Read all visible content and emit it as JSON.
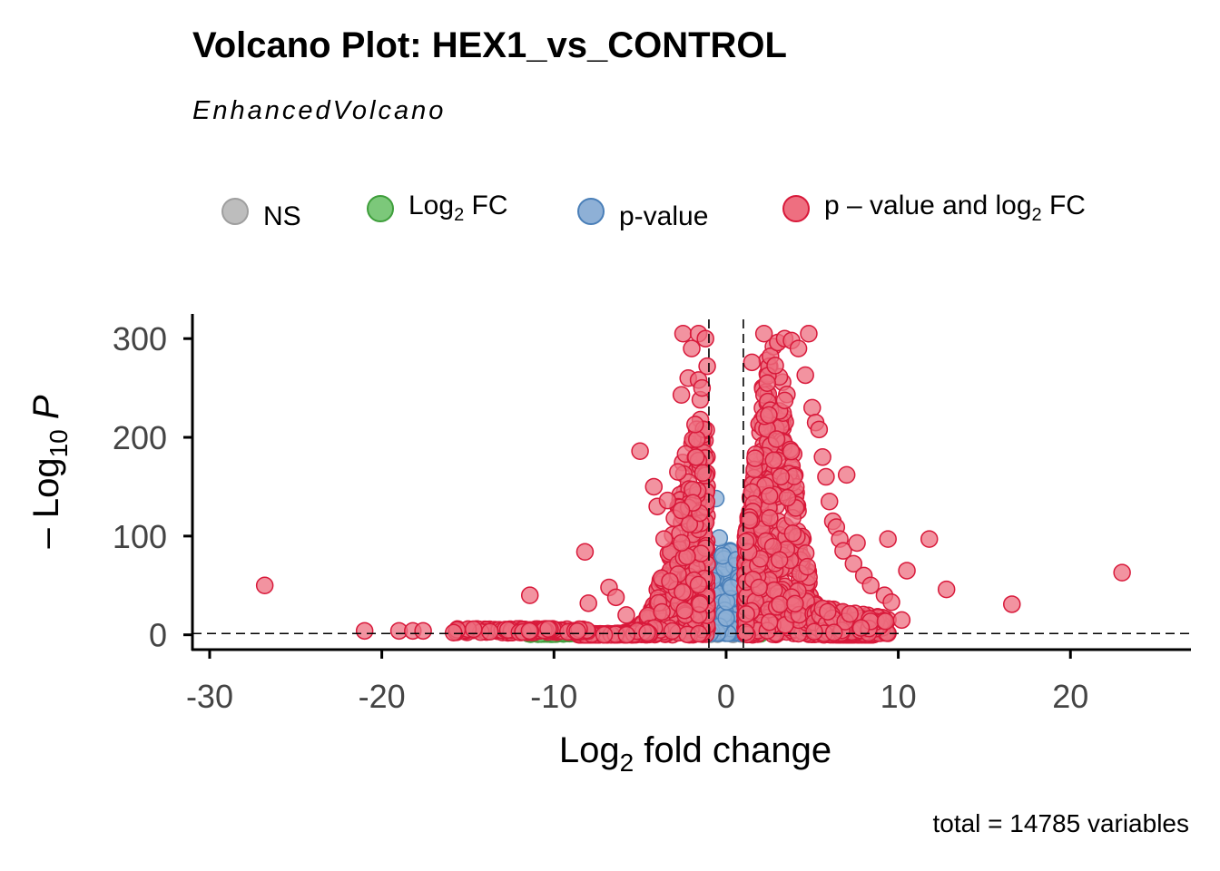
{
  "chart_data": {
    "type": "scatter",
    "title": "Volcano Plot: HEX1_vs_CONTROL",
    "subtitle": "EnhancedVolcano",
    "xlabel": "Log2 fold change",
    "ylabel": "-Log10 P",
    "caption": "total = 14785 variables",
    "xlim": [
      -31,
      27
    ],
    "ylim": [
      -15,
      325
    ],
    "x_ticks": [
      "-30",
      "-20",
      "-10",
      "0",
      "10",
      "20"
    ],
    "y_ticks": [
      "0",
      "100",
      "200",
      "300"
    ],
    "fc_cutoff": 1,
    "p_cutoff_neglog10": 1.3,
    "grid": false,
    "legend_position": "top",
    "legend": [
      {
        "key": "NS",
        "label": "NS",
        "color": "#bdbdbd",
        "stroke": "#9e9e9e"
      },
      {
        "key": "fc",
        "label": "Log",
        "sub": "2",
        "label_rest": " FC",
        "color": "#7cc87a",
        "stroke": "#3e9e3b"
      },
      {
        "key": "p",
        "label": "p-value",
        "color": "#8eb0d6",
        "stroke": "#4a7fb8"
      },
      {
        "key": "both",
        "label": "p – value and log",
        "sub": "2",
        "label_rest": " FC",
        "color": "#ee6f80",
        "stroke": "#d8193a"
      }
    ],
    "series": [
      {
        "key": "both",
        "outliers": [
          [
            -26.8,
            50
          ],
          [
            -21.0,
            4
          ],
          [
            -19.0,
            4
          ],
          [
            -18.2,
            4
          ],
          [
            -17.6,
            4
          ],
          [
            -11.4,
            40
          ],
          [
            -8.2,
            84
          ],
          [
            -8.0,
            32
          ],
          [
            -6.8,
            48
          ],
          [
            -6.4,
            38
          ],
          [
            -5.8,
            20
          ],
          [
            -5.0,
            186
          ],
          [
            -4.2,
            150
          ],
          [
            -4.0,
            130
          ],
          [
            -3.6,
            97
          ],
          [
            -3.4,
            136
          ],
          [
            -3.0,
            118
          ],
          [
            -2.8,
            165
          ],
          [
            -2.6,
            126
          ],
          [
            -2.6,
            243
          ],
          [
            -2.5,
            305
          ],
          [
            -2.2,
            260
          ],
          [
            -2.0,
            290
          ],
          [
            -1.8,
            213
          ],
          [
            -1.6,
            305
          ],
          [
            -1.6,
            258
          ],
          [
            -1.5,
            238
          ],
          [
            -1.4,
            250
          ],
          [
            -1.2,
            300
          ],
          [
            -1.1,
            272
          ],
          [
            1.5,
            276
          ],
          [
            2.2,
            305
          ],
          [
            3.0,
            296
          ],
          [
            3.4,
            300
          ],
          [
            3.8,
            298
          ],
          [
            4.2,
            290
          ],
          [
            4.6,
            263
          ],
          [
            4.8,
            305
          ],
          [
            5.0,
            230
          ],
          [
            5.2,
            215
          ],
          [
            5.4,
            208
          ],
          [
            5.6,
            180
          ],
          [
            5.8,
            160
          ],
          [
            6.0,
            135
          ],
          [
            6.2,
            115
          ],
          [
            6.4,
            109
          ],
          [
            6.6,
            97
          ],
          [
            6.8,
            85
          ],
          [
            7.0,
            162
          ],
          [
            7.4,
            72
          ],
          [
            7.6,
            93
          ],
          [
            8.0,
            60
          ],
          [
            8.4,
            50
          ],
          [
            9.2,
            40
          ],
          [
            9.6,
            33
          ],
          [
            10.2,
            15
          ],
          [
            10.5,
            65
          ],
          [
            9.4,
            97
          ],
          [
            11.8,
            97
          ],
          [
            12.8,
            46
          ],
          [
            16.6,
            31
          ],
          [
            23.0,
            63
          ]
        ]
      },
      {
        "key": "p",
        "outliers": [
          [
            -0.6,
            138
          ],
          [
            -0.4,
            98
          ],
          [
            -0.2,
            80
          ],
          [
            0.6,
            76
          ],
          [
            0.8,
            55
          ],
          [
            -0.8,
            55
          ],
          [
            0.3,
            48
          ]
        ]
      },
      {
        "key": "fc",
        "outliers": [
          [
            -11.4,
            2
          ],
          [
            -10.8,
            1
          ],
          [
            -10.0,
            1
          ],
          [
            -9.2,
            2
          ],
          [
            -8.4,
            1
          ],
          [
            1.4,
            1
          ],
          [
            2.0,
            1
          ]
        ]
      },
      {
        "key": "NS",
        "outliers": [
          [
            -0.5,
            0.6
          ],
          [
            0.4,
            0.4
          ],
          [
            0.9,
            0.8
          ],
          [
            -0.9,
            0.5
          ]
        ]
      }
    ]
  }
}
